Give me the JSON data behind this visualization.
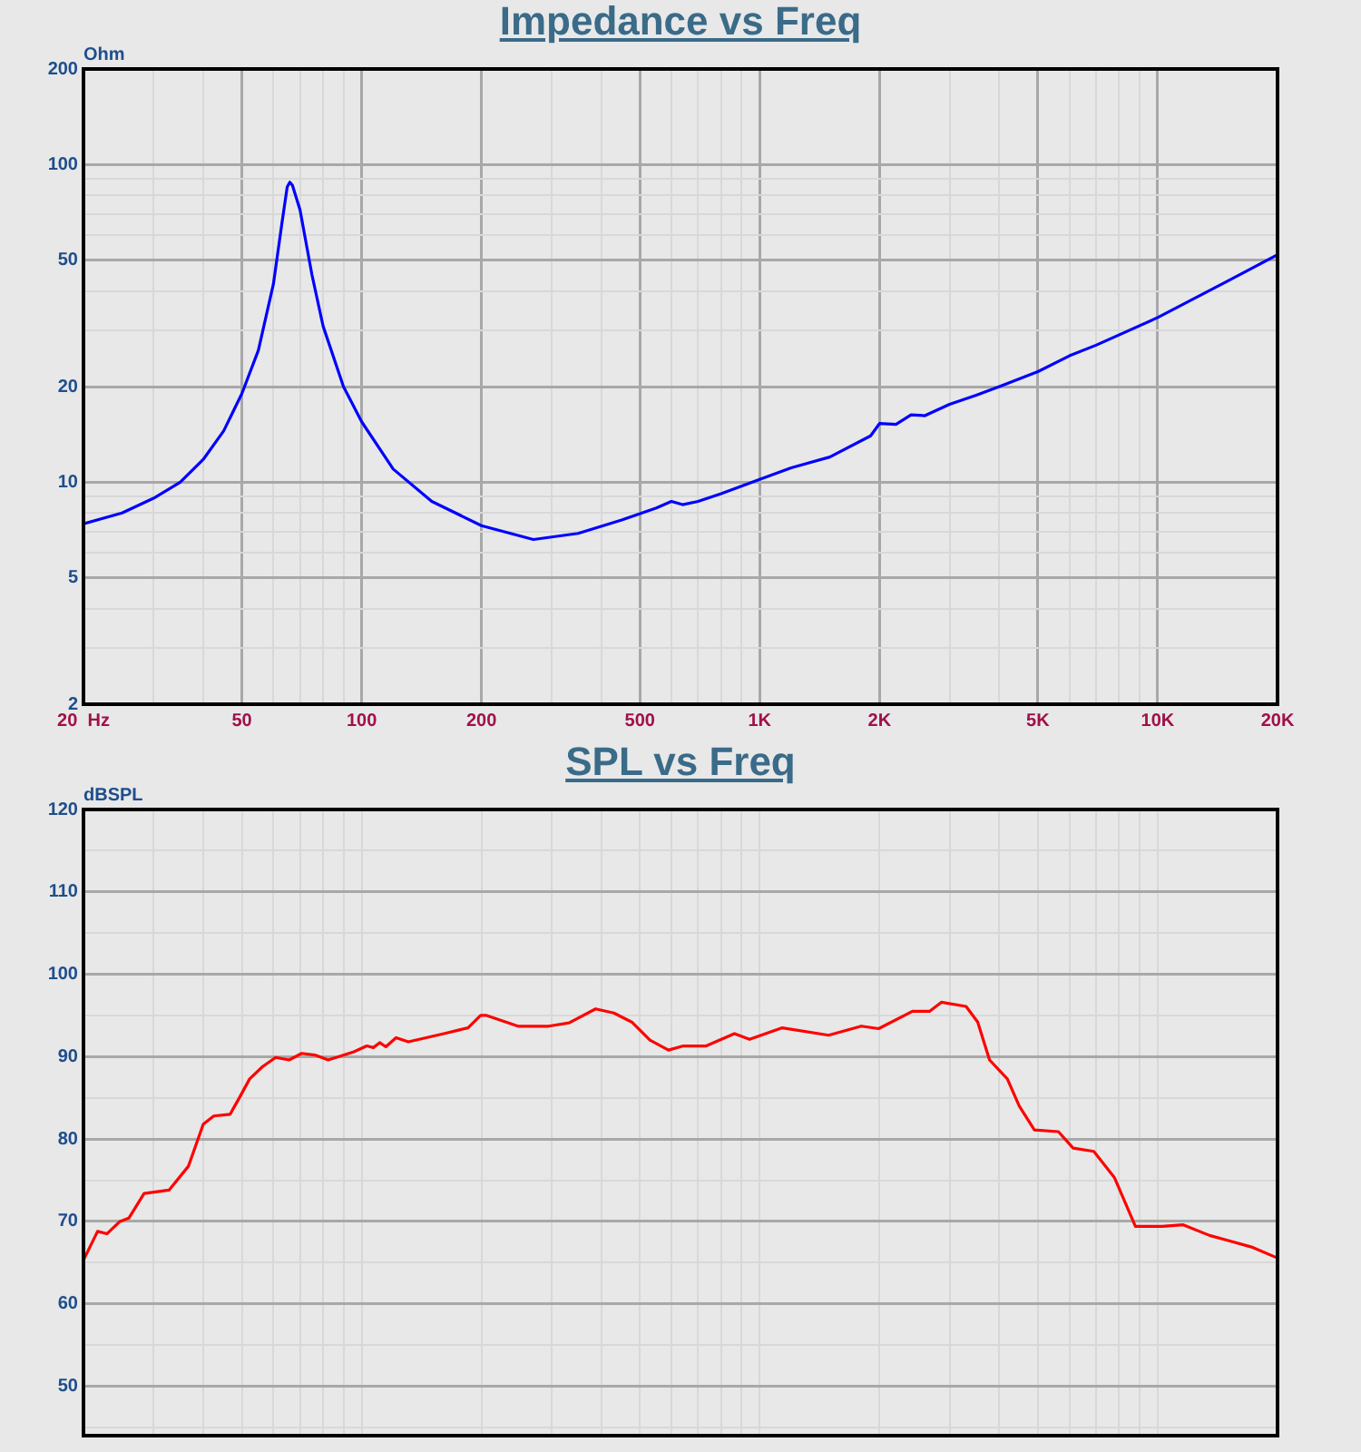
{
  "chart_data": [
    {
      "type": "line",
      "title": "Impedance vs Freq",
      "ylabel": "Ohm",
      "log": "xy",
      "grid": true,
      "xlim": [
        20,
        20000
      ],
      "xticks": [
        {
          "value": 20,
          "label": "20  Hz"
        },
        {
          "value": 30,
          "label": null
        },
        {
          "value": 40,
          "label": null
        },
        50,
        {
          "value": 60,
          "label": null
        },
        {
          "value": 70,
          "label": null
        },
        {
          "value": 80,
          "label": null
        },
        {
          "value": 90,
          "label": null
        },
        100,
        200,
        {
          "value": 300,
          "label": null
        },
        {
          "value": 400,
          "label": null
        },
        500,
        {
          "value": 600,
          "label": null
        },
        {
          "value": 700,
          "label": null
        },
        {
          "value": 800,
          "label": null
        },
        {
          "value": 900,
          "label": null
        },
        {
          "value": 1000,
          "label": "1K"
        },
        {
          "value": 2000,
          "label": "2K"
        },
        {
          "value": 3000,
          "label": null
        },
        {
          "value": 4000,
          "label": null
        },
        {
          "value": 5000,
          "label": "5K"
        },
        {
          "value": 6000,
          "label": null
        },
        {
          "value": 7000,
          "label": null
        },
        {
          "value": 8000,
          "label": null
        },
        {
          "value": 9000,
          "label": null
        },
        {
          "value": 10000,
          "label": "10K"
        },
        {
          "value": 20000,
          "label": "20K"
        }
      ],
      "ylim": [
        2,
        200
      ],
      "yticks": [
        2,
        {
          "value": 3,
          "label": null
        },
        {
          "value": 4,
          "label": null
        },
        5,
        {
          "value": 6,
          "label": null
        },
        {
          "value": 7,
          "label": null
        },
        {
          "value": 8,
          "label": null
        },
        {
          "value": 9,
          "label": null
        },
        10,
        20,
        {
          "value": 30,
          "label": null
        },
        {
          "value": 40,
          "label": null
        },
        50,
        {
          "value": 60,
          "label": null
        },
        {
          "value": 70,
          "label": null
        },
        {
          "value": 80,
          "label": null
        },
        {
          "value": 90,
          "label": null
        },
        100,
        200
      ],
      "series": [
        {
          "color": "#0000ff",
          "x": [
            20,
            25,
            30,
            35,
            40,
            45,
            50,
            55,
            60,
            63,
            65,
            66,
            67,
            70,
            75,
            80,
            90,
            100,
            120,
            150,
            200,
            270,
            350,
            450,
            550,
            600,
            640,
            700,
            800,
            1000,
            1200,
            1500,
            1900,
            2000,
            2200,
            2400,
            2600,
            3000,
            3500,
            4000,
            5000,
            6000,
            7000,
            10000,
            15000,
            20000
          ],
          "values": [
            7.4,
            8.0,
            8.9,
            10,
            11.8,
            14.5,
            19,
            26,
            42,
            65,
            85,
            88,
            86,
            72,
            45,
            31,
            20,
            15.5,
            11,
            8.7,
            7.3,
            6.6,
            6.9,
            7.6,
            8.3,
            8.7,
            8.5,
            8.7,
            9.2,
            10.2,
            11.1,
            12,
            14,
            15.3,
            15.2,
            16.3,
            16.2,
            17.6,
            18.8,
            20,
            22.3,
            25,
            27,
            33,
            43,
            52
          ]
        }
      ]
    },
    {
      "type": "line",
      "title": "SPL vs Freq",
      "ylabel": "dBSPL",
      "log": "x",
      "grid": true,
      "tick_labels": "y",
      "xlim": [
        20,
        20000
      ],
      "xticks": [
        {
          "value": 20,
          "label": null
        },
        {
          "value": 30,
          "label": null
        },
        {
          "value": 40,
          "label": null
        },
        {
          "value": 50,
          "label": null
        },
        {
          "value": 60,
          "label": null
        },
        {
          "value": 70,
          "label": null
        },
        {
          "value": 80,
          "label": null
        },
        {
          "value": 90,
          "label": null
        },
        {
          "value": 100,
          "label": null
        },
        {
          "value": 200,
          "label": null
        },
        {
          "value": 300,
          "label": null
        },
        {
          "value": 400,
          "label": null
        },
        {
          "value": 500,
          "label": null
        },
        {
          "value": 600,
          "label": null
        },
        {
          "value": 700,
          "label": null
        },
        {
          "value": 800,
          "label": null
        },
        {
          "value": 900,
          "label": null
        },
        {
          "value": 1000,
          "label": null
        },
        {
          "value": 2000,
          "label": null
        },
        {
          "value": 3000,
          "label": null
        },
        {
          "value": 4000,
          "label": null
        },
        {
          "value": 5000,
          "label": null
        },
        {
          "value": 6000,
          "label": null
        },
        {
          "value": 7000,
          "label": null
        },
        {
          "value": 8000,
          "label": null
        },
        {
          "value": 9000,
          "label": null
        },
        {
          "value": 10000,
          "label": null
        },
        {
          "value": 20000,
          "label": null
        }
      ],
      "ylim": [
        44,
        120
      ],
      "yticks": [
        {
          "value": 45,
          "label": null
        },
        50,
        {
          "value": 55,
          "label": null
        },
        60,
        {
          "value": 65,
          "label": null
        },
        70,
        {
          "value": 75,
          "label": null
        },
        80,
        {
          "value": 85,
          "label": null
        },
        90,
        {
          "value": 95,
          "label": null
        },
        100,
        {
          "value": 105,
          "label": null
        },
        110,
        {
          "value": 115,
          "label": null
        },
        120
      ],
      "series": [
        {
          "color": "#ff0000",
          "x": [
            20,
            21.7,
            22.9,
            24.7,
            26,
            28.4,
            32.8,
            36.7,
            40,
            42.5,
            46.7,
            49.4,
            52.3,
            56.4,
            60.8,
            65.7,
            70.7,
            76.3,
            82.4,
            95.6,
            103,
            107,
            111,
            115,
            122,
            131,
            161,
            185,
            199,
            206,
            247,
            295,
            332,
            387,
            430,
            477,
            530,
            590,
            643,
            734,
            864,
            943,
            1140,
            1490,
            1800,
            1990,
            2420,
            2670,
            2860,
            3300,
            3530,
            3780,
            4190,
            4490,
            4900,
            5630,
            6130,
            6910,
            7790,
            8790,
            10260,
            11560,
            13500,
            14970,
            17200,
            19900
          ],
          "values": [
            65.3,
            68.8,
            68.5,
            70,
            70.4,
            73.4,
            73.8,
            76.7,
            81.8,
            82.8,
            83,
            85.1,
            87.3,
            88.8,
            89.9,
            89.6,
            90.4,
            90.2,
            89.6,
            90.6,
            91.3,
            91.1,
            91.7,
            91.2,
            92.3,
            91.8,
            92.8,
            93.5,
            95,
            95,
            93.7,
            93.7,
            94.1,
            95.8,
            95.3,
            94.2,
            92,
            90.8,
            91.3,
            91.3,
            92.8,
            92.1,
            93.5,
            92.6,
            93.7,
            93.4,
            95.5,
            95.5,
            96.6,
            96.1,
            94.2,
            89.6,
            87.3,
            84,
            81.1,
            80.9,
            78.9,
            78.5,
            75.3,
            69.4,
            69.4,
            69.6,
            68.3,
            67.7,
            66.9,
            65.6
          ]
        }
      ]
    }
  ]
}
